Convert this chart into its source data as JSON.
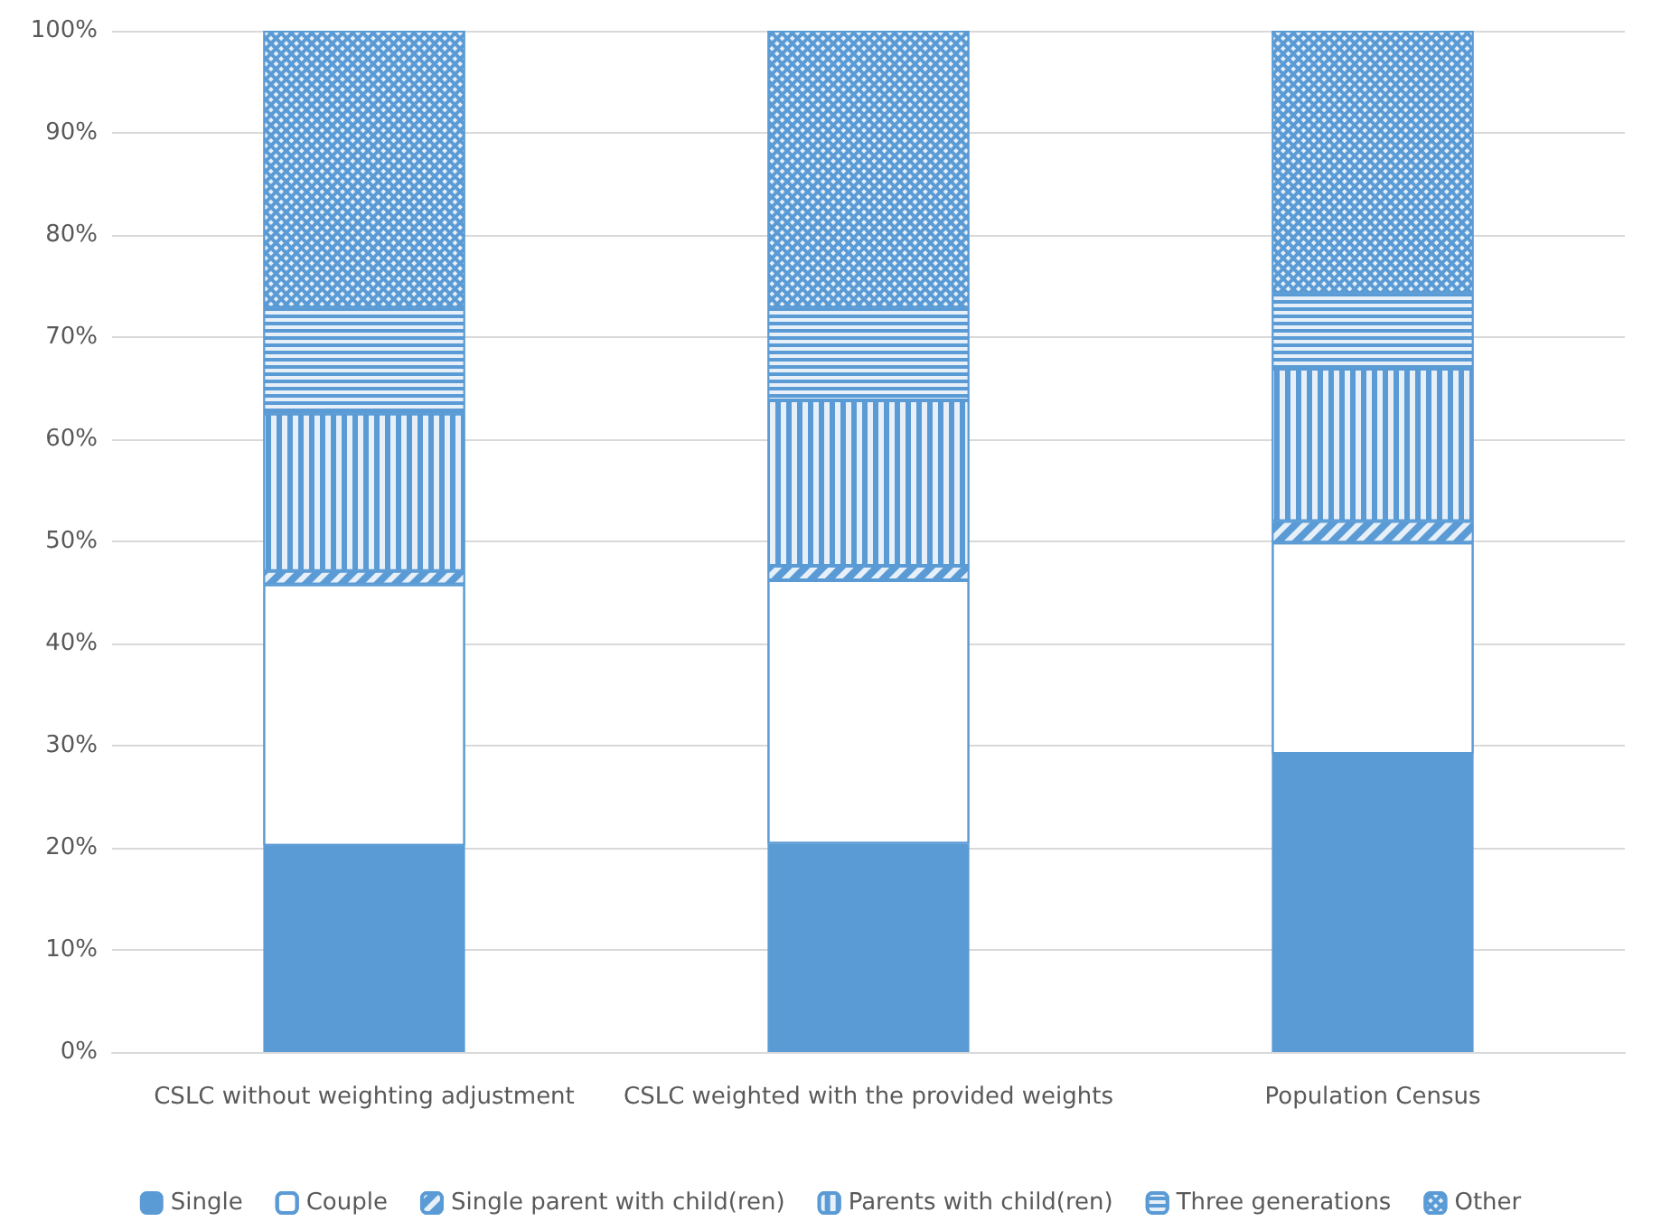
{
  "chart_data": {
    "type": "bar",
    "stacked": true,
    "categories": [
      "CSLC without weighting adjustment",
      "CSLC weighted with the provided weights",
      "Population Census"
    ],
    "series": [
      {
        "name": "Single",
        "color": "#5b9bd5",
        "values": [
          20.2,
          20.4,
          29.2
        ]
      },
      {
        "name": "Couple",
        "color": "#ffffff",
        "values": [
          25.6,
          25.8,
          20.7
        ]
      },
      {
        "name": "Single parent with child(ren)",
        "color": "#5b9bd5",
        "values": [
          1.3,
          1.4,
          2.1
        ]
      },
      {
        "name": "Parents with child(ren)",
        "color": "#5b9bd5",
        "values": [
          15.4,
          16.2,
          14.9
        ]
      },
      {
        "name": "Three generations",
        "color": "#5b9bd5",
        "values": [
          10.4,
          9.1,
          7.4
        ]
      },
      {
        "name": "Other",
        "color": "#5b9bd5",
        "values": [
          27.1,
          27.1,
          25.7
        ]
      }
    ],
    "ylim": [
      0,
      100
    ],
    "yticks": [
      {
        "value": 0,
        "label": "0%"
      },
      {
        "value": 10,
        "label": "10%"
      },
      {
        "value": 20,
        "label": "20%"
      },
      {
        "value": 30,
        "label": "30%"
      },
      {
        "value": 40,
        "label": "40%"
      },
      {
        "value": 50,
        "label": "50%"
      },
      {
        "value": 60,
        "label": "60%"
      },
      {
        "value": 70,
        "label": "70%"
      },
      {
        "value": 80,
        "label": "80%"
      },
      {
        "value": 90,
        "label": "90%"
      },
      {
        "value": 100,
        "label": "100%"
      }
    ],
    "grid": "y",
    "legend": "bottom"
  }
}
